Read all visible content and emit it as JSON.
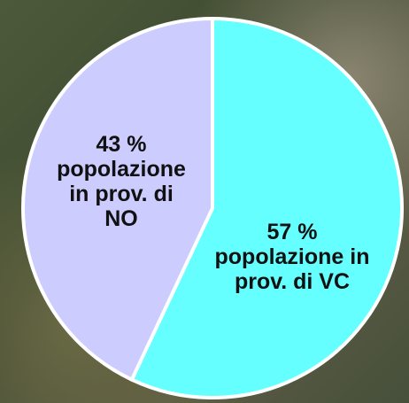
{
  "chart_data": {
    "type": "pie",
    "categories": [
      "popolazione in prov. di VC",
      "popolazione in prov. di NO"
    ],
    "values": [
      57,
      43
    ],
    "value_labels": [
      "57 %",
      "43 %"
    ],
    "colors": [
      "#66ffff",
      "#ccccff"
    ]
  }
}
